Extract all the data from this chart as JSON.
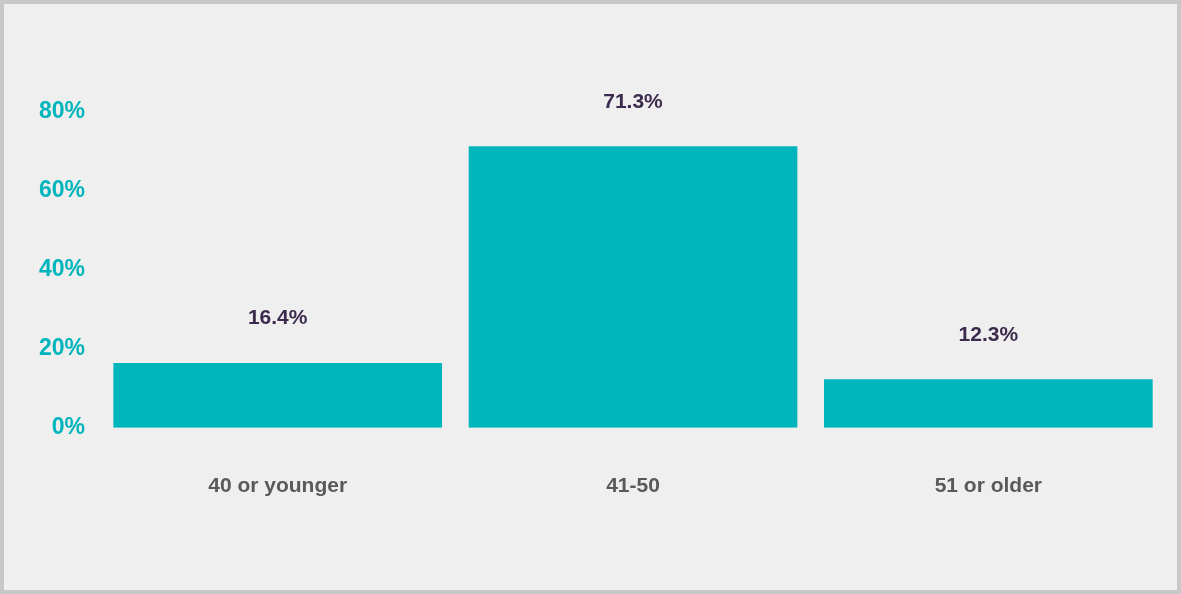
{
  "chart_data": {
    "type": "bar",
    "categories": [
      "40 or younger",
      "41-50",
      "51 or older"
    ],
    "values": [
      16.4,
      71.3,
      12.3
    ],
    "value_labels": [
      "16.4%",
      "71.3%",
      "12.3%"
    ],
    "color": "#00b5bb",
    "ylim": [
      0,
      80
    ],
    "yticks": [
      {
        "value": 0,
        "label": "0%"
      },
      {
        "value": 20,
        "label": "20%"
      },
      {
        "value": 40,
        "label": "40%"
      },
      {
        "value": 60,
        "label": "60%"
      },
      {
        "value": 80,
        "label": "80%"
      }
    ],
    "grid": false,
    "legend": false
  }
}
